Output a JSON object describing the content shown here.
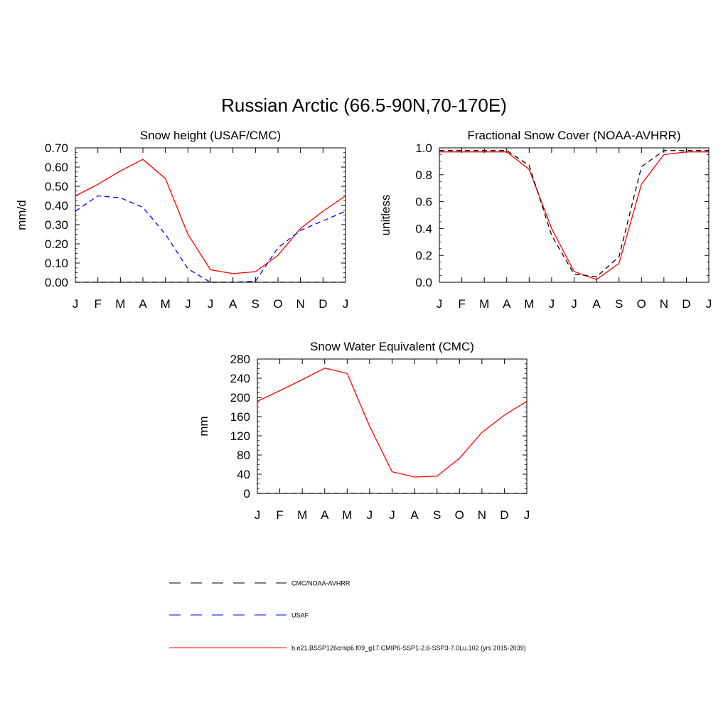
{
  "figure": {
    "title": "Russian Arctic (66.5-90N,70-170E)"
  },
  "legend": {
    "placement": "bottom",
    "entries": [
      {
        "label": "CMC/NOAA-AVHRR",
        "color": "#000000",
        "style": "dashed"
      },
      {
        "label": "USAF",
        "color": "#0000ff",
        "style": "dashed"
      },
      {
        "label": "b.e21.BSSP126cmip6.f09_g17.CMIP6-SSP1-2.6-SSP3-7.0Lu.102 (yrs 2015-2039)",
        "color": "#ff0000",
        "style": "solid"
      }
    ]
  },
  "chart_data": [
    {
      "type": "line",
      "title": "Snow height (USAF/CMC)",
      "xlabel": "",
      "ylabel": "mm/d",
      "categories": [
        "J",
        "F",
        "M",
        "A",
        "M",
        "J",
        "J",
        "A",
        "S",
        "O",
        "N",
        "D",
        "J"
      ],
      "ylim": [
        0,
        0.7
      ],
      "yticks": [
        "0.00",
        "0.10",
        "0.20",
        "0.30",
        "0.40",
        "0.50",
        "0.60",
        "0.70"
      ],
      "series": [
        {
          "name": "b.e21.BSSP126cmip6.f09_g17.CMIP6-SSP1-2.6-SSP3-7.0Lu.102 (yrs 2015-2039)",
          "color": "#ff0000",
          "style": "solid",
          "values": [
            0.45,
            0.51,
            0.58,
            0.64,
            0.54,
            0.25,
            0.065,
            0.045,
            0.055,
            0.14,
            0.28,
            0.37,
            0.45
          ]
        },
        {
          "name": "USAF",
          "color": "#0000ff",
          "style": "dashed",
          "values": [
            0.37,
            0.45,
            0.44,
            0.39,
            0.25,
            0.07,
            0.0,
            0.0,
            0.005,
            0.18,
            0.27,
            0.32,
            0.37
          ]
        },
        {
          "name": "CMC/NOAA-AVHRR",
          "color": "#000000",
          "style": "dashed",
          "values": [
            0,
            0,
            0,
            0,
            0,
            0,
            0,
            0,
            0,
            0,
            0,
            0,
            0
          ]
        }
      ]
    },
    {
      "type": "line",
      "title": "Fractional Snow Cover (NOAA-AVHRR)",
      "xlabel": "",
      "ylabel": "unitless",
      "categories": [
        "J",
        "F",
        "M",
        "A",
        "M",
        "J",
        "J",
        "A",
        "S",
        "O",
        "N",
        "D",
        "J"
      ],
      "ylim": [
        0,
        1.0
      ],
      "yticks": [
        "0.0",
        "0.2",
        "0.4",
        "0.6",
        "0.8",
        "1.0"
      ],
      "series": [
        {
          "name": "b.e21.BSSP126cmip6.f09_g17.CMIP6-SSP1-2.6-SSP3-7.0Lu.102 (yrs 2015-2039)",
          "color": "#ff0000",
          "style": "solid",
          "values": [
            0.97,
            0.97,
            0.97,
            0.97,
            0.84,
            0.4,
            0.08,
            0.02,
            0.14,
            0.73,
            0.95,
            0.97,
            0.97
          ]
        },
        {
          "name": "CMC/NOAA-AVHRR",
          "color": "#000000",
          "style": "dashed",
          "values": [
            0.98,
            0.98,
            0.98,
            0.98,
            0.87,
            0.35,
            0.06,
            0.04,
            0.19,
            0.86,
            0.98,
            0.98,
            0.98
          ]
        }
      ]
    },
    {
      "type": "line",
      "title": "Snow Water Equivalent (CMC)",
      "xlabel": "",
      "ylabel": "mm",
      "categories": [
        "J",
        "F",
        "M",
        "A",
        "M",
        "J",
        "J",
        "A",
        "S",
        "O",
        "N",
        "D",
        "J"
      ],
      "ylim": [
        0,
        280
      ],
      "yticks": [
        "0",
        "40",
        "80",
        "120",
        "160",
        "200",
        "240",
        "280"
      ],
      "series": [
        {
          "name": "b.e21.BSSP126cmip6.f09_g17.CMIP6-SSP1-2.6-SSP3-7.0Lu.102 (yrs 2015-2039)",
          "color": "#ff0000",
          "style": "solid",
          "values": [
            192,
            214,
            237,
            261,
            250,
            140,
            45,
            34,
            36,
            73,
            127,
            163,
            192
          ]
        },
        {
          "name": "CMC/NOAA-AVHRR",
          "color": "#000000",
          "style": "dashed",
          "values": [
            0,
            0,
            0,
            0,
            0,
            0,
            0,
            0,
            0,
            0,
            0,
            0,
            0
          ]
        }
      ]
    }
  ]
}
